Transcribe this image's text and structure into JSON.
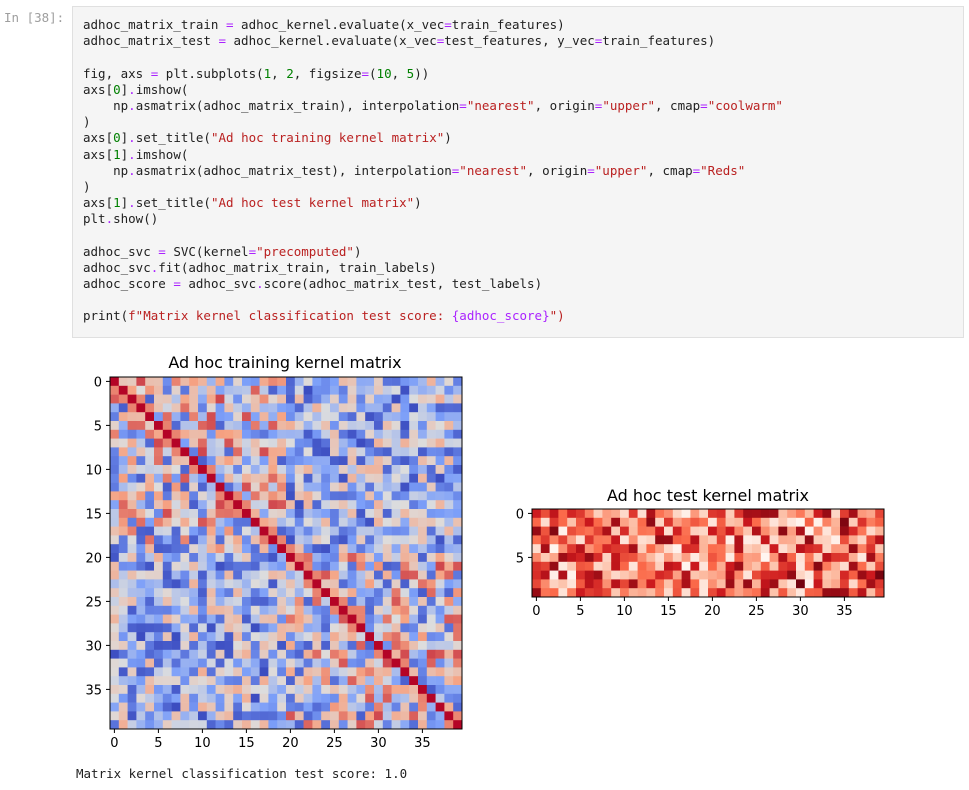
{
  "cell": {
    "prompt": "In [38]:",
    "code_lines": [
      [
        {
          "t": "adhoc_matrix_train "
        },
        {
          "t": "=",
          "c": "op"
        },
        {
          "t": " adhoc_kernel.evaluate(x_vec"
        },
        {
          "t": "=",
          "c": "op"
        },
        {
          "t": "train_features)"
        }
      ],
      [
        {
          "t": "adhoc_matrix_test "
        },
        {
          "t": "=",
          "c": "op"
        },
        {
          "t": " adhoc_kernel.evaluate(x_vec"
        },
        {
          "t": "=",
          "c": "op"
        },
        {
          "t": "test_features, y_vec"
        },
        {
          "t": "=",
          "c": "op"
        },
        {
          "t": "train_features)"
        }
      ],
      [],
      [
        {
          "t": "fig, axs "
        },
        {
          "t": "=",
          "c": "op"
        },
        {
          "t": " plt.subplots("
        },
        {
          "t": "1",
          "c": "num"
        },
        {
          "t": ", "
        },
        {
          "t": "2",
          "c": "num"
        },
        {
          "t": ", figsize"
        },
        {
          "t": "=",
          "c": "op"
        },
        {
          "t": "("
        },
        {
          "t": "10",
          "c": "num"
        },
        {
          "t": ", "
        },
        {
          "t": "5",
          "c": "num"
        },
        {
          "t": "))"
        }
      ],
      [
        {
          "t": "axs["
        },
        {
          "t": "0",
          "c": "num"
        },
        {
          "t": "]"
        },
        {
          "t": ".",
          "c": "op"
        },
        {
          "t": "imshow("
        }
      ],
      [
        {
          "t": "    np"
        },
        {
          "t": ".",
          "c": "op"
        },
        {
          "t": "asmatrix(adhoc_matrix_train), interpolation"
        },
        {
          "t": "=",
          "c": "op"
        },
        {
          "t": "\"nearest\"",
          "c": "str"
        },
        {
          "t": ", origin"
        },
        {
          "t": "=",
          "c": "op"
        },
        {
          "t": "\"upper\"",
          "c": "str"
        },
        {
          "t": ", cmap"
        },
        {
          "t": "=",
          "c": "op"
        },
        {
          "t": "\"coolwarm\"",
          "c": "str"
        }
      ],
      [
        {
          "t": ")"
        }
      ],
      [
        {
          "t": "axs["
        },
        {
          "t": "0",
          "c": "num"
        },
        {
          "t": "]"
        },
        {
          "t": ".",
          "c": "op"
        },
        {
          "t": "set_title("
        },
        {
          "t": "\"Ad hoc training kernel matrix\"",
          "c": "str"
        },
        {
          "t": ")"
        }
      ],
      [
        {
          "t": "axs["
        },
        {
          "t": "1",
          "c": "num"
        },
        {
          "t": "]"
        },
        {
          "t": ".",
          "c": "op"
        },
        {
          "t": "imshow("
        }
      ],
      [
        {
          "t": "    np"
        },
        {
          "t": ".",
          "c": "op"
        },
        {
          "t": "asmatrix(adhoc_matrix_test), interpolation"
        },
        {
          "t": "=",
          "c": "op"
        },
        {
          "t": "\"nearest\"",
          "c": "str"
        },
        {
          "t": ", origin"
        },
        {
          "t": "=",
          "c": "op"
        },
        {
          "t": "\"upper\"",
          "c": "str"
        },
        {
          "t": ", cmap"
        },
        {
          "t": "=",
          "c": "op"
        },
        {
          "t": "\"Reds\"",
          "c": "str"
        }
      ],
      [
        {
          "t": ")"
        }
      ],
      [
        {
          "t": "axs["
        },
        {
          "t": "1",
          "c": "num"
        },
        {
          "t": "]"
        },
        {
          "t": ".",
          "c": "op"
        },
        {
          "t": "set_title("
        },
        {
          "t": "\"Ad hoc test kernel matrix\"",
          "c": "str"
        },
        {
          "t": ")"
        }
      ],
      [
        {
          "t": "plt"
        },
        {
          "t": ".",
          "c": "op"
        },
        {
          "t": "show()"
        }
      ],
      [],
      [
        {
          "t": "adhoc_svc "
        },
        {
          "t": "=",
          "c": "op"
        },
        {
          "t": " SVC(kernel"
        },
        {
          "t": "=",
          "c": "op"
        },
        {
          "t": "\"precomputed\"",
          "c": "str"
        },
        {
          "t": ")"
        }
      ],
      [
        {
          "t": "adhoc_svc"
        },
        {
          "t": ".",
          "c": "op"
        },
        {
          "t": "fit(adhoc_matrix_train, train_labels)"
        }
      ],
      [
        {
          "t": "adhoc_score "
        },
        {
          "t": "=",
          "c": "op"
        },
        {
          "t": " adhoc_svc"
        },
        {
          "t": ".",
          "c": "op"
        },
        {
          "t": "score(adhoc_matrix_test, test_labels)"
        }
      ],
      [],
      [
        {
          "t": "print("
        },
        {
          "t": "f\"Matrix kernel classification test score: ",
          "c": "str"
        },
        {
          "t": "{adhoc_score}",
          "c": "op"
        },
        {
          "t": "\")",
          "c": "str"
        }
      ]
    ]
  },
  "output": {
    "stdout": "Matrix kernel classification test score: 1.0"
  },
  "chart_data": [
    {
      "type": "heatmap",
      "title": "Ad hoc training kernel matrix",
      "colormap": "coolwarm",
      "rows": 40,
      "cols": 40,
      "diagonal_value": 1.0,
      "value_range": [
        0,
        1
      ],
      "xticks": [
        0,
        5,
        10,
        15,
        20,
        25,
        30,
        35
      ],
      "yticks": [
        0,
        5,
        10,
        15,
        20,
        25,
        30,
        35
      ]
    },
    {
      "type": "heatmap",
      "title": "Ad hoc test kernel matrix",
      "colormap": "Reds",
      "rows": 10,
      "cols": 40,
      "value_range": [
        0,
        1
      ],
      "xticks": [
        0,
        5,
        10,
        15,
        20,
        25,
        30,
        35
      ],
      "yticks": [
        0,
        5
      ]
    }
  ],
  "colors": {
    "code_background": "#f5f5f5",
    "string": "#ba2121",
    "number": "#008000",
    "operator": "#aa22ff"
  }
}
